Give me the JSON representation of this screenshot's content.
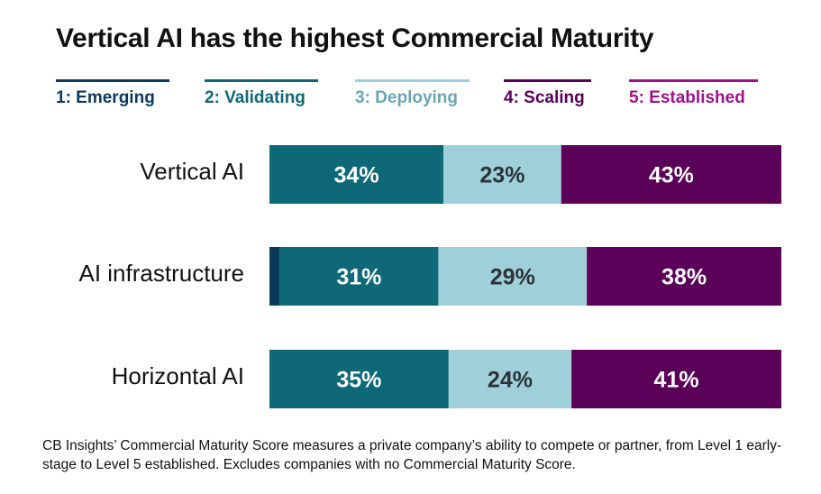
{
  "chart_data": {
    "type": "bar",
    "orientation": "horizontal",
    "stacked": true,
    "normalized": true,
    "title": "Vertical AI has the highest Commercial Maturity",
    "categories": [
      "Vertical AI",
      "AI infrastructure",
      "Horizontal AI"
    ],
    "series": [
      {
        "name": "1: Emerging",
        "color": "#0b3a5b",
        "label_color": "#ffffff",
        "values": [
          0,
          2,
          0
        ],
        "show_labels": false
      },
      {
        "name": "2: Validating",
        "color": "#0f6878",
        "label_color": "#ffffff",
        "values": [
          34,
          31,
          35
        ],
        "show_labels": true
      },
      {
        "name": "3: Deploying",
        "color": "#9fd0da",
        "label_color": "#2a3338",
        "values": [
          23,
          29,
          24
        ],
        "show_labels": true
      },
      {
        "name": "4: Scaling",
        "color": "#5b0059",
        "label_color": "#ffffff",
        "values": [
          43,
          38,
          41
        ],
        "show_labels": true
      },
      {
        "name": "5: Established",
        "color": "#a0108e",
        "label_color": "#ffffff",
        "values": [
          0,
          0,
          0
        ],
        "show_labels": false
      }
    ],
    "legend_text_colors": [
      "#0b3a5b",
      "#0f6878",
      "#6aa6b2",
      "#5b0059",
      "#a0108e"
    ],
    "value_suffix": "%",
    "xlim": [
      0,
      100
    ],
    "legend_position": "top",
    "grid": false,
    "xlabel": "",
    "ylabel": ""
  },
  "footnote": "CB Insights’ Commercial Maturity Score measures a private company’s ability to compete or partner, from Level 1 early-stage to Level 5 established. Excludes companies with no Commercial Maturity Score."
}
